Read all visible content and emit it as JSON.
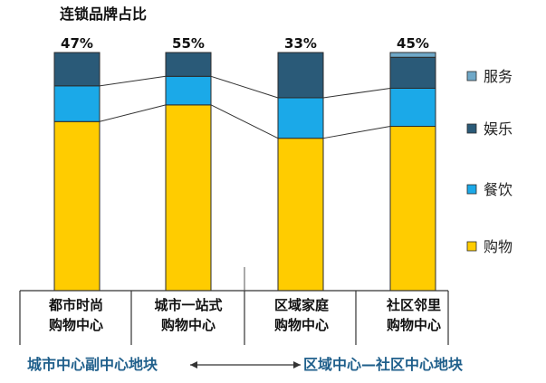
{
  "chart_data": {
    "type": "stacked-bar",
    "title": "连锁品牌占比",
    "categories": [
      [
        "都市时尚",
        "购物中心"
      ],
      [
        "城市一站式",
        "购物中心"
      ],
      [
        "区域家庭",
        "购物中心"
      ],
      [
        "社区邻里",
        "购物中心"
      ]
    ],
    "top_labels": [
      "47%",
      "55%",
      "33%",
      "45%"
    ],
    "series": [
      {
        "name": "购物",
        "color": "#FFCC00",
        "values": [
          0.71,
          0.78,
          0.64,
          0.69
        ]
      },
      {
        "name": "餐饮",
        "color": "#1BA9E8",
        "values": [
          0.15,
          0.12,
          0.17,
          0.16
        ]
      },
      {
        "name": "娱乐",
        "color": "#2A5A78",
        "values": [
          0.14,
          0.1,
          0.19,
          0.13
        ]
      },
      {
        "name": "服务",
        "color": "#6FA8C8",
        "values": [
          0.0,
          0.0,
          0.0,
          0.02
        ]
      }
    ],
    "legend_order": [
      "服务",
      "娱乐",
      "餐饮",
      "购物"
    ],
    "ylim": [
      0,
      1
    ],
    "connector_color": "#333333",
    "region_labels": {
      "left": "城市中心副中心地块",
      "right": "区域中心—社区中心地块",
      "color": "#1F5F8B"
    }
  }
}
